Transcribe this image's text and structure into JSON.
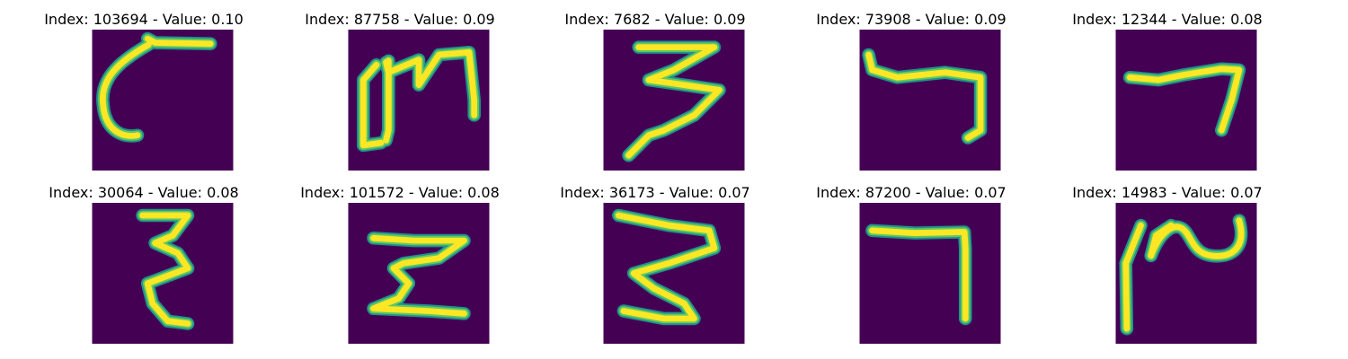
{
  "colors": {
    "background": "#440154",
    "stroke_outer": "#21918c",
    "stroke_mid": "#5ec962",
    "stroke_core": "#fde725"
  },
  "panels": [
    {
      "title": "Index: 103694 - Value: 0.10",
      "index": 103694,
      "value": 0.1
    },
    {
      "title": "Index: 87758 - Value: 0.09",
      "index": 87758,
      "value": 0.09
    },
    {
      "title": "Index: 7682 - Value: 0.09",
      "index": 7682,
      "value": 0.09
    },
    {
      "title": "Index: 73908 - Value: 0.09",
      "index": 73908,
      "value": 0.09
    },
    {
      "title": "Index: 12344 - Value: 0.08",
      "index": 12344,
      "value": 0.08
    },
    {
      "title": "Index: 30064 - Value: 0.08",
      "index": 30064,
      "value": 0.08
    },
    {
      "title": "Index: 101572 - Value: 0.08",
      "index": 101572,
      "value": 0.08
    },
    {
      "title": "Index: 36173 - Value: 0.07",
      "index": 36173,
      "value": 0.07
    },
    {
      "title": "Index: 87200 - Value: 0.07",
      "index": 87200,
      "value": 0.07
    },
    {
      "title": "Index: 14983 - Value: 0.07",
      "index": 14983,
      "value": 0.07
    }
  ]
}
